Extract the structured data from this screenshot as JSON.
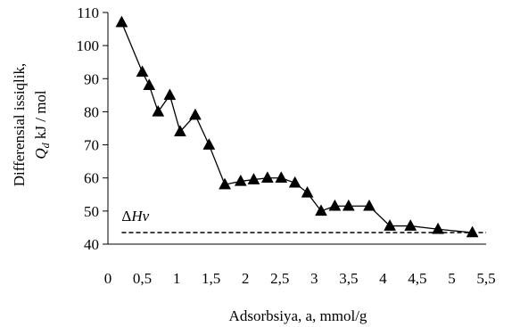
{
  "chart_data": {
    "type": "line",
    "xlabel": "Adsorbsiya, a, mmol/g",
    "ylabel_line1": "Differensial issiqlik,",
    "ylabel_line2": "Q",
    "ylabel_sub": "d",
    "ylabel_unit": " kJ / mol",
    "xlim": [
      0,
      5.5
    ],
    "ylim": [
      40,
      110
    ],
    "x_ticks": [
      0,
      0.5,
      1,
      1.5,
      2,
      2.5,
      3,
      3.5,
      4,
      4.5,
      5,
      5.5
    ],
    "x_tick_labels": [
      "0",
      "0,5",
      "1",
      "1,5",
      "2",
      "2,5",
      "3",
      "3,5",
      "4",
      "4,5",
      "5",
      "5,5"
    ],
    "y_ticks": [
      40,
      50,
      60,
      70,
      80,
      90,
      100,
      110
    ],
    "y_tick_labels": [
      "40",
      "50",
      "60",
      "70",
      "80",
      "90",
      "100",
      "110"
    ],
    "grid": false,
    "series": [
      {
        "marker": "triangle",
        "color": "#000000",
        "x": [
          0.2,
          0.5,
          0.6,
          0.73,
          0.9,
          1.05,
          1.27,
          1.47,
          1.7,
          1.93,
          2.12,
          2.32,
          2.52,
          2.72,
          2.9,
          3.1,
          3.3,
          3.5,
          3.8,
          4.1,
          4.4,
          4.8,
          5.3
        ],
        "y": [
          107,
          92,
          88,
          80,
          85,
          74,
          79,
          70,
          58,
          59,
          59.5,
          60,
          60,
          58.5,
          55.5,
          50,
          51.5,
          51.5,
          51.5,
          45.5,
          45.5,
          44.5,
          43.5
        ]
      }
    ],
    "reference_line": {
      "label_prefix": "Δ",
      "label_main": "Hv",
      "y": 43.5,
      "style": "dashed"
    }
  }
}
